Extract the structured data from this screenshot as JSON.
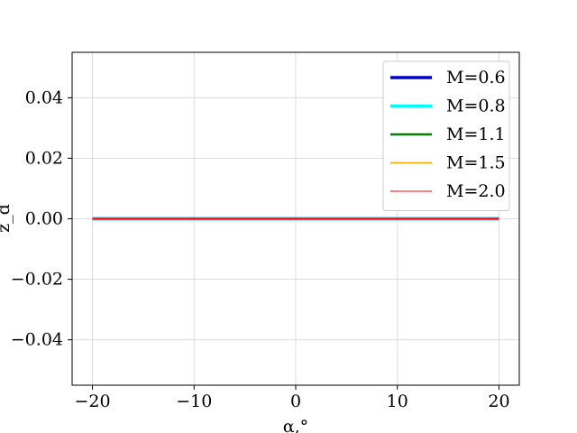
{
  "chart_data": {
    "type": "line",
    "title": "",
    "xlabel": "α,°",
    "ylabel": "z_d",
    "xlim": [
      -22,
      22
    ],
    "ylim": [
      -0.055,
      0.055
    ],
    "xticks": [
      -20,
      -10,
      0,
      10,
      20
    ],
    "xtick_labels": [
      "−20",
      "−10",
      "0",
      "10",
      "20"
    ],
    "yticks": [
      0.04,
      0.02,
      0.0,
      -0.02,
      -0.04
    ],
    "ytick_labels": [
      "0.04",
      "0.02",
      "0.00",
      "−0.02",
      "−0.04"
    ],
    "grid": true,
    "legend_position": "top-right",
    "series": [
      {
        "name": "M=0.6",
        "color": "#0000cd",
        "line_width": "thick",
        "x": [
          -20,
          20
        ],
        "y": [
          0,
          0
        ]
      },
      {
        "name": "M=0.8",
        "color": "#00ffff",
        "line_width": "thick",
        "x": [
          -20,
          20
        ],
        "y": [
          0,
          0
        ]
      },
      {
        "name": "M=1.1",
        "color": "#008000",
        "line_width": "medium",
        "x": [
          -20,
          20
        ],
        "y": [
          0,
          0
        ]
      },
      {
        "name": "M=1.5",
        "color": "#ffa500",
        "line_width": "thin",
        "x": [
          -20,
          20
        ],
        "y": [
          0,
          0
        ]
      },
      {
        "name": "M=2.0",
        "color": "#ff0000",
        "line_width": "thinnest",
        "x": [
          -20,
          20
        ],
        "y": [
          0,
          0
        ]
      }
    ]
  }
}
